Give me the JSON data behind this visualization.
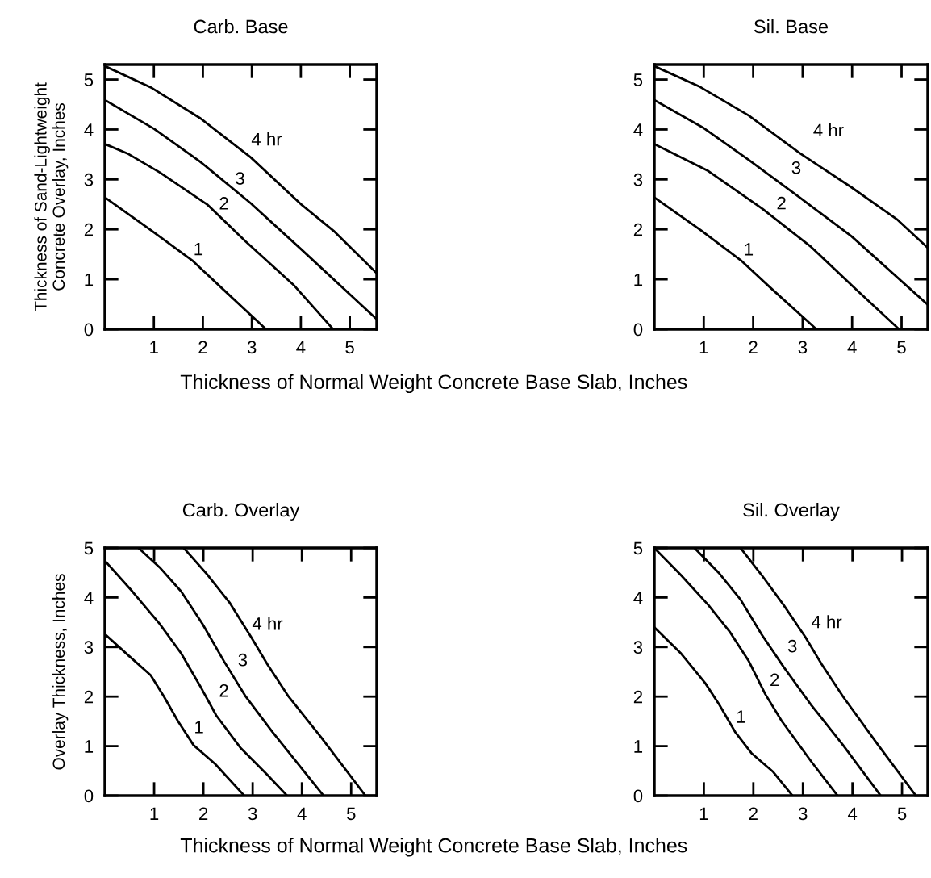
{
  "chart_data": [
    {
      "type": "line",
      "title": "Carb. Base",
      "xlabel": "Thickness of Normal Weight Concrete Base Slab, Inches",
      "ylabel": "Thickness of Sand-Lightweight\nConcrete Overlay, Inches",
      "xlim": [
        0,
        5.55
      ],
      "ylim": [
        0,
        5.3
      ],
      "xticks": [
        1,
        2,
        3,
        4,
        5
      ],
      "yticks": [
        0,
        1,
        2,
        3,
        4,
        5
      ],
      "grid": false,
      "marker": "none",
      "line_style": "solid",
      "annotations": [
        "4 hr",
        "3",
        "2",
        "1"
      ],
      "series": [
        {
          "color": "#000000",
          "x": [
            0,
            0.96,
            1.94,
            2.98,
            4.02,
            4.67,
            5.54
          ],
          "values": [
            5.27,
            4.83,
            4.23,
            3.44,
            2.49,
            1.97,
            1.13
          ]
        },
        {
          "color": "#000000",
          "x": [
            0,
            1.01,
            1.94,
            2.98,
            4.02,
            5.54
          ],
          "values": [
            4.59,
            4.01,
            3.36,
            2.52,
            1.59,
            0.21
          ]
        },
        {
          "color": "#000000",
          "x": [
            0,
            0.46,
            1.12,
            2.1,
            2.87,
            3.85,
            4.66
          ],
          "values": [
            3.71,
            3.52,
            3.14,
            2.49,
            1.76,
            0.89,
            0
          ]
        },
        {
          "color": "#000000",
          "x": [
            0,
            0.96,
            1.78,
            2.38,
            3.29
          ],
          "values": [
            2.64,
            1.97,
            1.38,
            0.83,
            0
          ]
        }
      ]
    },
    {
      "type": "line",
      "title": "Sil. Base",
      "xlim": [
        0,
        5.53
      ],
      "ylim": [
        0,
        5.3
      ],
      "xticks": [
        1,
        2,
        3,
        4,
        5
      ],
      "yticks": [
        0,
        1,
        2,
        3,
        4,
        5
      ],
      "grid": false,
      "marker": "none",
      "line_style": "solid",
      "annotations": [
        "4 hr",
        "3",
        "2",
        "1"
      ],
      "series": [
        {
          "color": "#000000",
          "x": [
            0,
            0.93,
            1.91,
            2.95,
            3.99,
            4.92,
            5.53
          ],
          "values": [
            5.27,
            4.85,
            4.28,
            3.52,
            2.84,
            2.19,
            1.63
          ]
        },
        {
          "color": "#000000",
          "x": [
            0,
            0.98,
            1.91,
            2.95,
            3.99,
            5.53
          ],
          "values": [
            4.59,
            4.04,
            3.39,
            2.63,
            1.86,
            0.49
          ]
        },
        {
          "color": "#000000",
          "x": [
            0,
            1.09,
            2.19,
            3.17,
            4.1,
            4.95
          ],
          "values": [
            3.71,
            3.17,
            2.41,
            1.65,
            0.78,
            0
          ]
        },
        {
          "color": "#000000",
          "x": [
            0,
            0.96,
            1.75,
            2.35,
            3.28
          ],
          "values": [
            2.64,
            1.97,
            1.38,
            0.83,
            0
          ]
        }
      ]
    },
    {
      "type": "line",
      "title": "Carb. Overlay",
      "xlabel": "Thickness of Normal Weight Concrete Base Slab, Inches",
      "ylabel": "Overlay Thickness, Inches",
      "xlim": [
        0,
        5.52
      ],
      "ylim": [
        0,
        5
      ],
      "xticks": [
        1,
        2,
        3,
        4,
        5
      ],
      "yticks": [
        0,
        1,
        2,
        3,
        4,
        5
      ],
      "grid": false,
      "marker": "none",
      "line_style": "solid",
      "annotations": [
        "4 hr",
        "3",
        "2",
        "1"
      ],
      "series": [
        {
          "color": "#000000",
          "x": [
            1.6,
            2.09,
            2.53,
            2.97,
            3.3,
            3.73,
            4.39,
            5.29
          ],
          "values": [
            5,
            4.45,
            3.9,
            3.2,
            2.65,
            2.0,
            1.18,
            0
          ]
        },
        {
          "color": "#000000",
          "x": [
            0.68,
            1.11,
            1.55,
            1.98,
            2.42,
            2.86,
            3.4,
            4.44
          ],
          "values": [
            5,
            4.61,
            4.12,
            3.47,
            2.71,
            2.0,
            1.29,
            0
          ]
        },
        {
          "color": "#000000",
          "x": [
            0,
            0.56,
            1.11,
            1.55,
            1.93,
            2.26,
            2.75,
            3.3,
            3.7
          ],
          "values": [
            4.74,
            4.12,
            3.47,
            2.87,
            2.22,
            1.62,
            0.97,
            0.42,
            0
          ]
        },
        {
          "color": "#000000",
          "x": [
            0,
            0.49,
            0.93,
            1.2,
            1.48,
            1.8,
            2.24,
            2.83
          ],
          "values": [
            3.26,
            2.82,
            2.43,
            2.0,
            1.51,
            1.02,
            0.64,
            0
          ]
        }
      ]
    },
    {
      "type": "line",
      "title": "Sil. Overlay",
      "xlim": [
        0,
        5.52
      ],
      "ylim": [
        0,
        5
      ],
      "xticks": [
        1,
        2,
        3,
        4,
        5
      ],
      "yticks": [
        0,
        1,
        2,
        3,
        4,
        5
      ],
      "grid": false,
      "marker": "none",
      "line_style": "solid",
      "annotations": [
        "4 hr",
        "3",
        "2",
        "1"
      ],
      "series": [
        {
          "color": "#000000",
          "x": [
            1.74,
            2.17,
            2.61,
            3.05,
            3.38,
            3.81,
            4.52,
            5.28
          ],
          "values": [
            5,
            4.45,
            3.85,
            3.2,
            2.65,
            2.0,
            1.02,
            0
          ]
        },
        {
          "color": "#000000",
          "x": [
            0.81,
            1.3,
            1.74,
            2.17,
            2.61,
            3.16,
            3.81,
            4.57
          ],
          "values": [
            5,
            4.5,
            3.96,
            3.25,
            2.6,
            1.84,
            1.02,
            0
          ]
        },
        {
          "color": "#000000",
          "x": [
            0,
            0.54,
            1.09,
            1.53,
            1.91,
            2.24,
            2.57,
            3.16,
            3.7
          ],
          "values": [
            5,
            4.45,
            3.85,
            3.3,
            2.71,
            2.05,
            1.51,
            0.7,
            0
          ]
        },
        {
          "color": "#000000",
          "x": [
            0,
            0.54,
            1.03,
            1.31,
            1.63,
            1.96,
            2.4,
            2.79
          ],
          "values": [
            3.4,
            2.87,
            2.27,
            1.84,
            1.29,
            0.86,
            0.48,
            0
          ]
        }
      ]
    }
  ]
}
